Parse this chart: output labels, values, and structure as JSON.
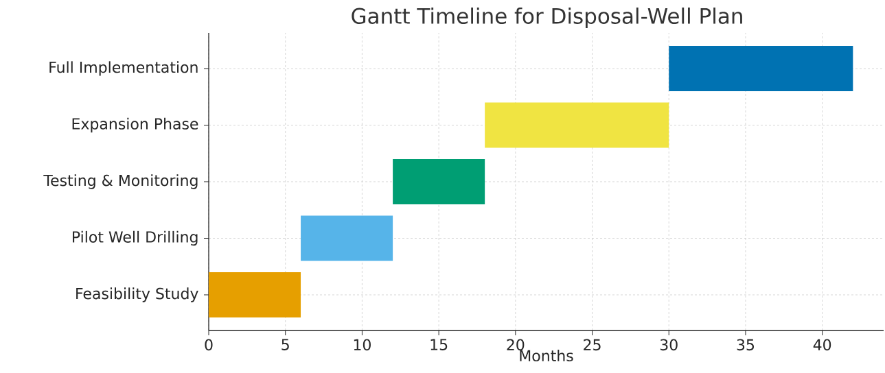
{
  "chart_data": {
    "type": "bar",
    "orientation": "horizontal",
    "title": "Gantt Timeline for Disposal-Well Plan",
    "xlabel": "Months",
    "categories": [
      "Full Implementation",
      "Expansion Phase",
      "Testing & Monitoring",
      "Pilot Well Drilling",
      "Feasibility Study"
    ],
    "base": [
      30,
      18,
      12,
      6,
      0
    ],
    "values": [
      12,
      12,
      6,
      6,
      6
    ],
    "colors": [
      "#0072b2",
      "#f0e442",
      "#009e73",
      "#56b4e9",
      "#e69f00"
    ],
    "xlim": [
      0,
      44
    ],
    "xticks": [
      0,
      5,
      10,
      15,
      20,
      25,
      30,
      35,
      40
    ],
    "grid": true
  }
}
